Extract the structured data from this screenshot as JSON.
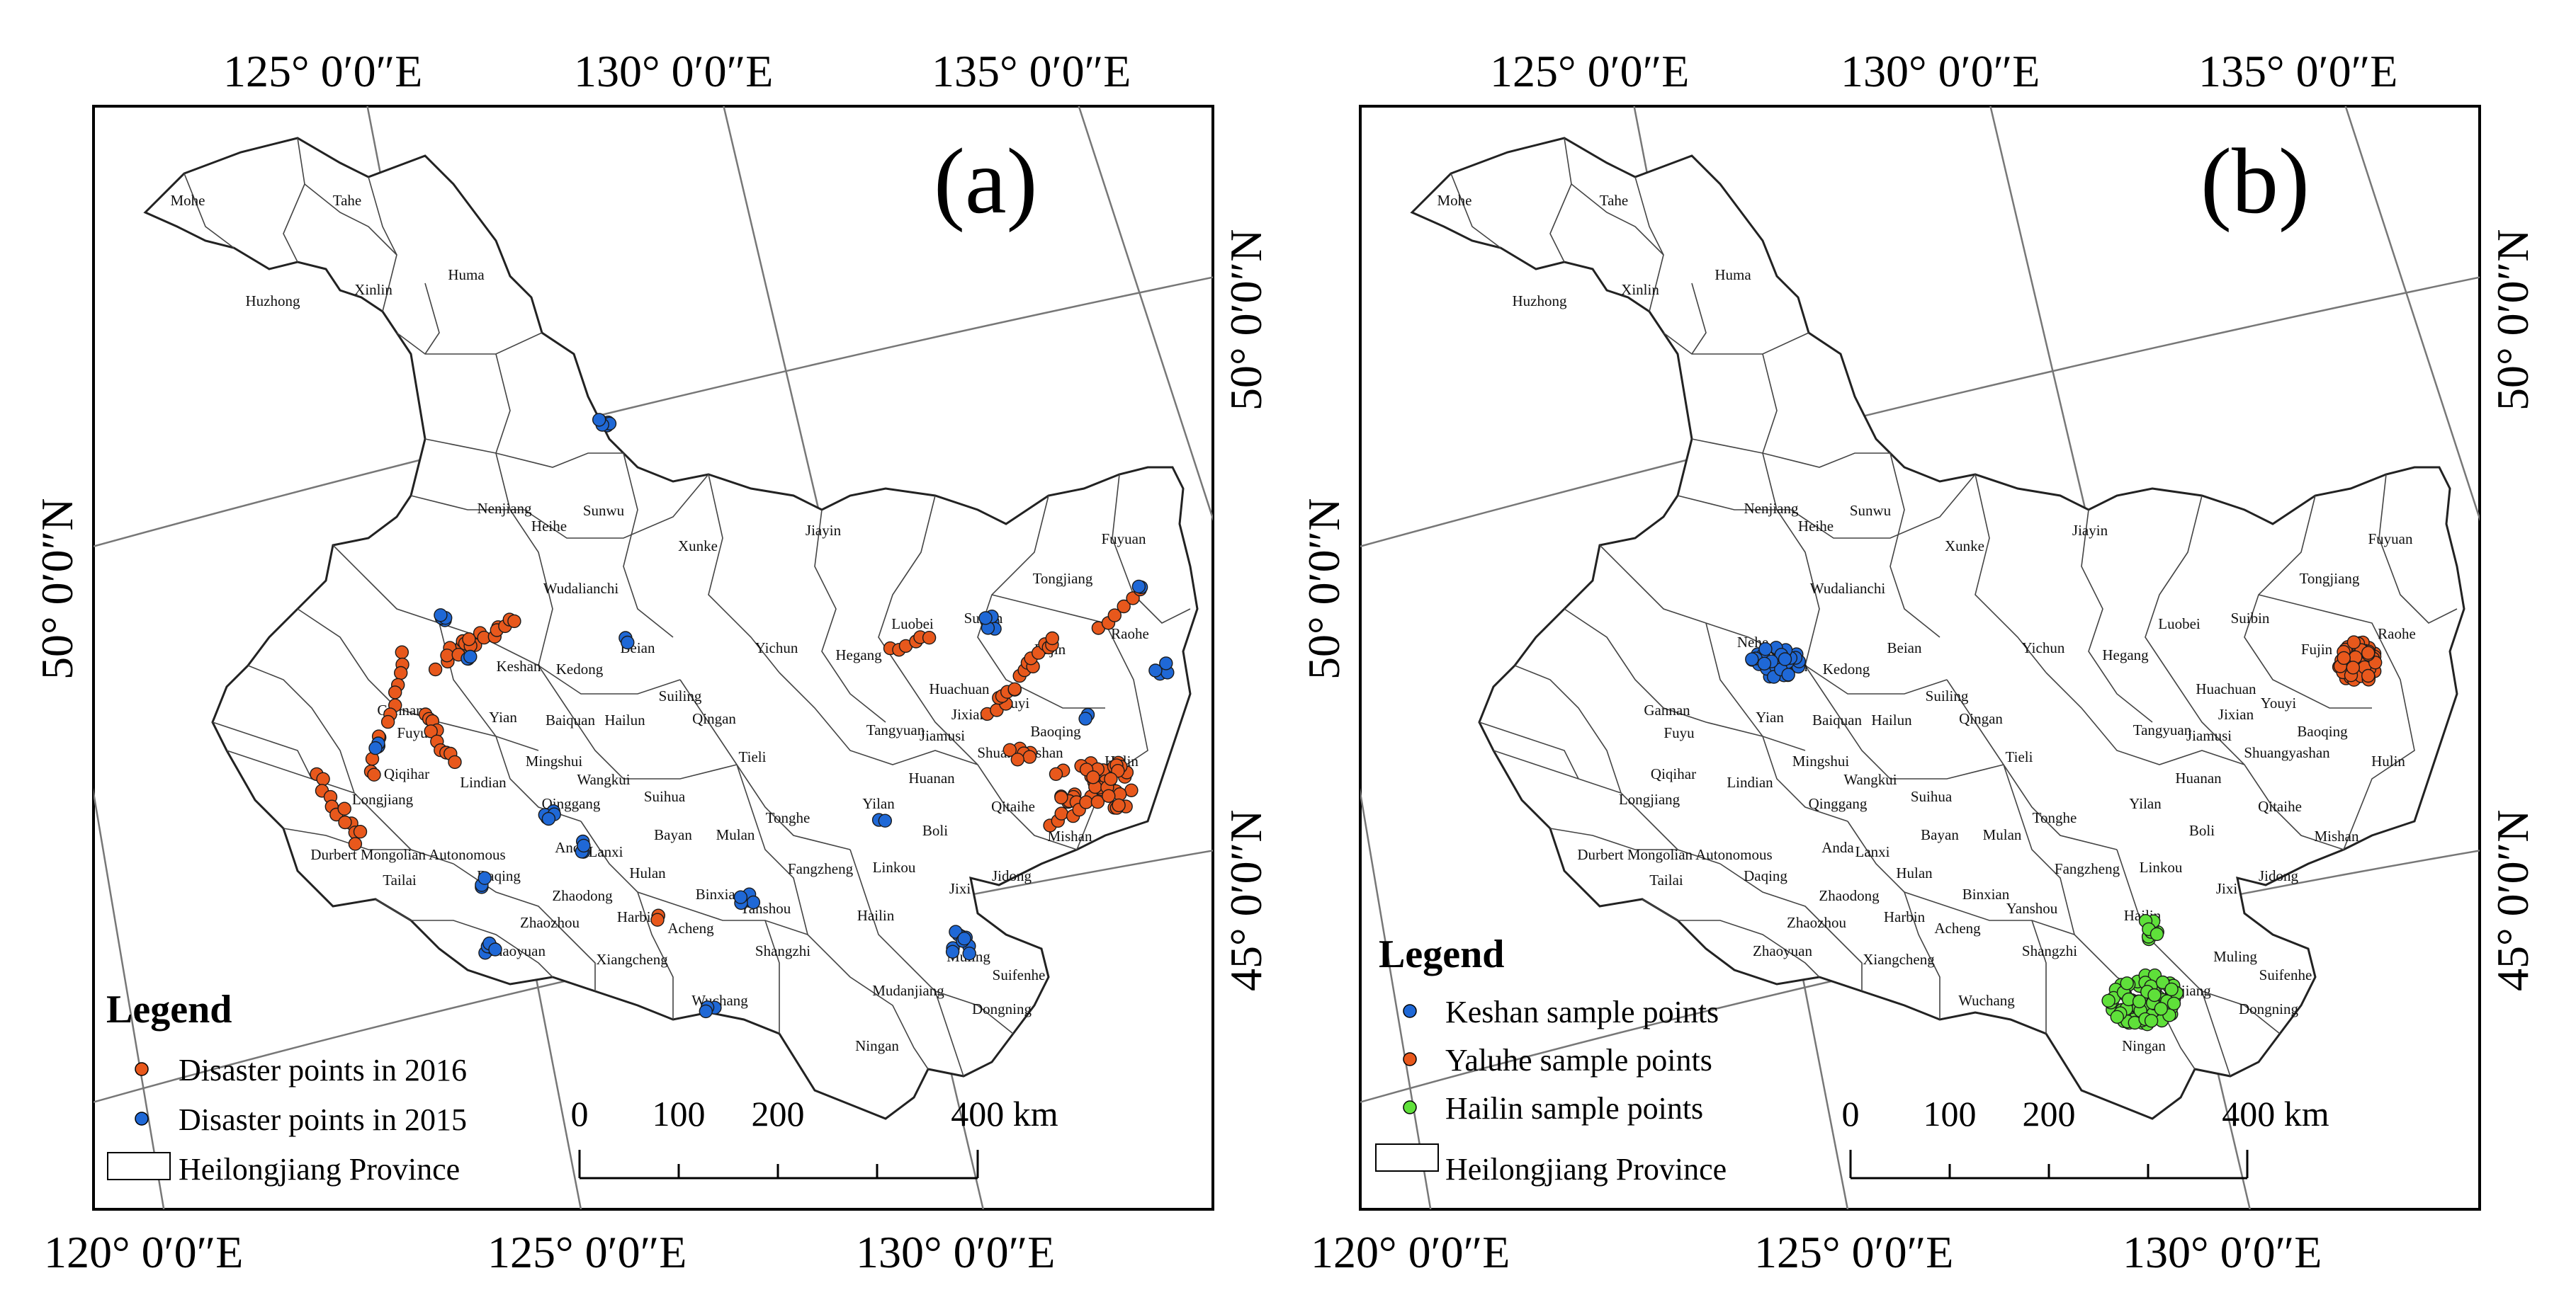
{
  "coords": {
    "top": [
      "125° 0′0″E",
      "130° 0′0″E",
      "135° 0′0″E"
    ],
    "bottom": [
      "120° 0′0″E",
      "125° 0′0″E",
      "130° 0′0″E"
    ],
    "left": [
      "50° 0′0″N"
    ],
    "right": [
      "50° 0′0″N",
      "45° 0′0″N"
    ]
  },
  "panels": [
    {
      "id": "a",
      "label": "(a)",
      "legend": {
        "title": "Legend",
        "items": [
          {
            "label": "Disaster points in 2016",
            "color": "#e8581c"
          },
          {
            "label": "Disaster points in 2015",
            "color": "#1f68d6"
          },
          {
            "label": "Heilongjiang Province",
            "color": "#ffffff"
          }
        ]
      },
      "scale": {
        "labels": [
          "0",
          "100",
          "200",
          "400 km"
        ]
      }
    },
    {
      "id": "b",
      "label": "(b)",
      "legend": {
        "title": "Legend",
        "items": [
          {
            "label": "Keshan  sample points",
            "color": "#1f68d6"
          },
          {
            "label": "Yaluhe sample points",
            "color": "#e8581c"
          },
          {
            "label": "Hailin  sample points",
            "color": "#5fe03a"
          },
          {
            "label": "Heilongjiang Province",
            "color": "#ffffff"
          }
        ]
      },
      "scale": {
        "labels": [
          "0",
          "100",
          "200",
          "400 km"
        ]
      }
    }
  ],
  "counties_a": [
    "Mohe",
    "Tahe",
    "Huzhong",
    "Xinlin",
    "Huma",
    "Heihe",
    "Nenjiang",
    "Sunwu",
    "Xunke",
    "Jiayin",
    "Wudalianchi",
    "Beian",
    "Keshan",
    "Kedong",
    "Yichun",
    "Luobei",
    "Suibin",
    "Tongjiang",
    "Fuyuan",
    "Raohe",
    "Fujin",
    "Hegang",
    "Huachuan",
    "Youyi",
    "Jixian",
    "Shuangyashan",
    "Baoqing",
    "Hulin",
    "Gannan",
    "Fuyu",
    "Yian",
    "Baiquan",
    "Hailun",
    "Suiling",
    "Qingan",
    "Tieli",
    "Tangyuan",
    "Jiamusi",
    "Huanan",
    "Qitaihe",
    "Qiqihar",
    "Longjiang",
    "Lindian",
    "Mingshui",
    "Wangkui",
    "Qinggang",
    "Suihua",
    "Tonghe",
    "Yilan",
    "Boli",
    "Mishan",
    "Durbert Mongolian Autonomous",
    "Anda",
    "Lanxi",
    "Bayan",
    "Mulan",
    "Fangzheng",
    "Linkou",
    "Jixi",
    "Jidong",
    "Tailai",
    "Daqing",
    "Zhaodong",
    "Hulan",
    "Harbin",
    "Binxian",
    "Yanshou",
    "Hailin",
    "Zhaozhou",
    "Acheng",
    "Shangzhi",
    "Muling",
    "Suifenhe",
    "Zhaoyuan",
    "Xiangcheng",
    "Mudanjiang",
    "Dongning",
    "Wuchang",
    "Ningan"
  ],
  "counties_b": [
    "Mohe",
    "Tahe",
    "Huzhong",
    "Xinlin",
    "Huma",
    "Heihe",
    "Nenjiang",
    "Sunwu",
    "Xunke",
    "Jiayin",
    "Wudalianchi",
    "Beian",
    "Nehe",
    "Keshan",
    "Kedong",
    "Yichun",
    "Luobei",
    "Suibin",
    "Tongjiang",
    "Fuyuan",
    "Raohe",
    "Fujin",
    "Hegang",
    "Huachuan",
    "Youyi",
    "Jixian",
    "Shuangyashan",
    "Baoqing",
    "Hulin",
    "Gannan",
    "Fuyu",
    "Yian",
    "Baiquan",
    "Hailun",
    "Suiling",
    "Qingan",
    "Tieli",
    "Tangyuan",
    "Jiamusi",
    "Huanan",
    "Qitaihe",
    "Qiqihar",
    "Longjiang",
    "Lindian",
    "Mingshui",
    "Wangkui",
    "Qinggang",
    "Suihua",
    "Tonghe",
    "Yilan",
    "Boli",
    "Mishan",
    "Durbert Mongolian Autonomous",
    "Anda",
    "Lanxi",
    "Bayan",
    "Mulan",
    "Fangzheng",
    "Linkou",
    "Jixi",
    "Jidong",
    "Tailai",
    "Daqing",
    "Zhaodong",
    "Hulan",
    "Harbin",
    "Binxian",
    "Yanshou",
    "Hailin",
    "Zhaozhou",
    "Acheng",
    "Shangzhi",
    "Muling",
    "Suifenhe",
    "Zhaoyuan",
    "Xiangcheng",
    "Mudanjiang",
    "Dongning",
    "Wuchang",
    "Ningan"
  ]
}
